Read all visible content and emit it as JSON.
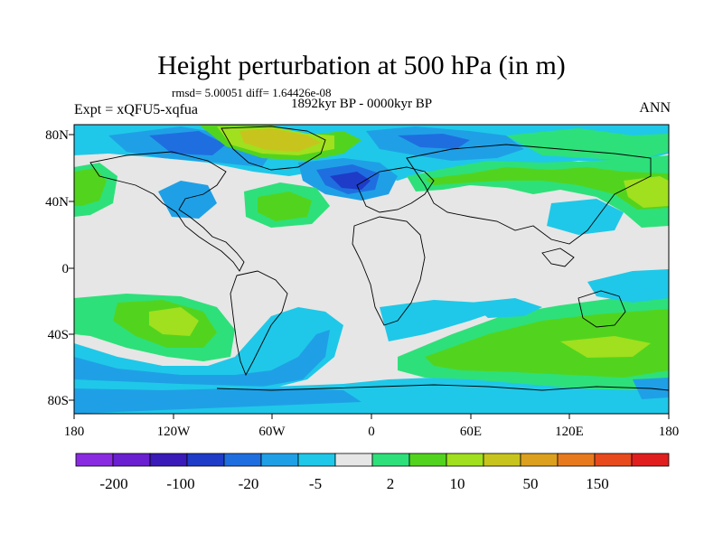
{
  "title": "Height perturbation at 500 hPa (in m)",
  "stats": "rmsd= 5.00051 diff= 1.64426e-08",
  "period": "1892kyr BP - 0000kyr BP",
  "experiment": "Expt = xQFU5-xqfua",
  "season": "ANN",
  "lat_labels": [
    "80N",
    "40N",
    "0",
    "40S",
    "80S"
  ],
  "lon_labels": [
    "180",
    "120W",
    "60W",
    "0",
    "60E",
    "120E",
    "180"
  ],
  "colorbar": {
    "colors": [
      "#8a2be2",
      "#6a1fd0",
      "#3a1ab8",
      "#1e3cc8",
      "#1f6ee0",
      "#1fa0e6",
      "#1fc8e8",
      "#e6e6e6",
      "#2ee07a",
      "#52d41e",
      "#a0e01e",
      "#c8c41e",
      "#dca01e",
      "#e87a1e",
      "#e84a1e",
      "#e01e1e"
    ],
    "labels": [
      "-200",
      "-100",
      "-20",
      "-5",
      "2",
      "10",
      "50",
      "150"
    ]
  },
  "field_colors": {
    "background": "#e6e6e6",
    "light_blue": "#1fc8e8",
    "mid_blue": "#1fa0e6",
    "blue": "#1f6ee0",
    "dark_blue": "#1e3cc8",
    "teal_green": "#2ee07a",
    "green": "#52d41e",
    "yellow_green": "#a0e01e",
    "olive": "#c8c41e"
  }
}
